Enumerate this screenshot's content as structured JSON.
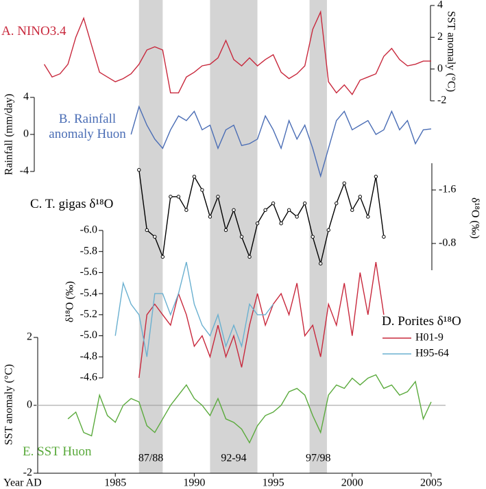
{
  "x_axis": {
    "label": "Year AD",
    "xlim": [
      1980,
      2005
    ],
    "xticks": [
      1985,
      1990,
      1995,
      2000,
      2005
    ],
    "shaded_regions": [
      {
        "start": 1986.5,
        "end": 1988.0,
        "label": "87/88"
      },
      {
        "start": 1991.0,
        "end": 1994.0,
        "label": "92-94"
      },
      {
        "start": 1997.3,
        "end": 1998.4,
        "label": "97/98"
      }
    ]
  },
  "chart_data": [
    {
      "type": "line",
      "title": "A. NINO3.4",
      "ylabel": "SST anomaly (°C)",
      "y_axis_side": "right",
      "ylim": [
        -2,
        4
      ],
      "yticks": [
        -2,
        0,
        2,
        4
      ],
      "x": [
        1980.5,
        1981,
        1981.5,
        1982,
        1982.5,
        1983,
        1983.5,
        1984,
        1984.5,
        1985,
        1985.5,
        1986,
        1986.5,
        1987,
        1987.5,
        1988,
        1988.5,
        1989,
        1989.5,
        1990,
        1990.5,
        1991,
        1991.5,
        1992,
        1992.5,
        1993,
        1993.5,
        1994,
        1994.5,
        1995,
        1995.5,
        1996,
        1996.5,
        1997,
        1997.5,
        1998,
        1998.5,
        1999,
        1999.5,
        2000,
        2000.5,
        2001,
        2001.5,
        2002,
        2002.5,
        2003,
        2003.5,
        2004,
        2004.5,
        2005
      ],
      "series": [
        {
          "color": "#c8283c",
          "values": [
            0.3,
            -0.5,
            -0.3,
            0.3,
            2.0,
            3.2,
            1.5,
            -0.2,
            -0.5,
            -0.8,
            -0.6,
            -0.3,
            0.3,
            1.2,
            1.4,
            1.2,
            -1.5,
            -1.5,
            -0.5,
            -0.2,
            0.2,
            0.3,
            0.7,
            1.8,
            0.6,
            0.2,
            0.7,
            0.2,
            0.6,
            0.9,
            -0.2,
            -0.6,
            -0.3,
            0.2,
            2.5,
            3.6,
            -0.8,
            -1.5,
            -1.0,
            -1.6,
            -0.7,
            -0.5,
            -0.3,
            0.8,
            1.3,
            0.6,
            0.2,
            0.3,
            0.5,
            0.5
          ]
        }
      ]
    },
    {
      "type": "line",
      "title": "B. Rainfall anomaly Huon",
      "ylabel": "Rainfall (mm/day)",
      "y_axis_side": "left",
      "ylim": [
        -4,
        4
      ],
      "yticks": [
        -4,
        0,
        4
      ],
      "x": [
        1986,
        1986.5,
        1987,
        1987.5,
        1988,
        1988.5,
        1989,
        1989.5,
        1990,
        1990.5,
        1991,
        1991.5,
        1992,
        1992.5,
        1993,
        1993.5,
        1994,
        1994.5,
        1995,
        1995.5,
        1996,
        1996.5,
        1997,
        1997.5,
        1998,
        1998.5,
        1999,
        1999.5,
        2000,
        2000.5,
        2001,
        2001.5,
        2002,
        2002.5,
        2003,
        2003.5,
        2004,
        2004.5,
        2005
      ],
      "series": [
        {
          "color": "#4a6db5",
          "values": [
            0,
            3.0,
            1.0,
            -0.5,
            -1.5,
            0.5,
            2.0,
            1.5,
            2.5,
            0.5,
            1.0,
            -1.5,
            0.5,
            1.0,
            -1.2,
            -1.0,
            -0.5,
            2.0,
            0.5,
            -1.5,
            1.5,
            -0.5,
            1.0,
            -1.5,
            -4.5,
            -1.5,
            1.5,
            2.5,
            0.5,
            1.0,
            1.5,
            0.0,
            0.5,
            2.5,
            0.5,
            1.5,
            -1.0,
            0.5,
            0.6
          ]
        }
      ]
    },
    {
      "type": "line",
      "title": "C. T. gigas δ¹⁸O",
      "ylabel": "δ¹⁸O (‰)",
      "y_axis_side": "right",
      "invert_y": true,
      "markers": true,
      "ylim": [
        -2.0,
        -0.4
      ],
      "yticks": [
        -1.6,
        -0.8
      ],
      "x": [
        1986.5,
        1987,
        1987.5,
        1988,
        1988.5,
        1989,
        1989.5,
        1990,
        1990.5,
        1991,
        1991.5,
        1992,
        1992.5,
        1993,
        1993.5,
        1994,
        1994.5,
        1995,
        1995.5,
        1996,
        1996.5,
        1997,
        1997.5,
        1998,
        1998.5,
        1999,
        1999.5,
        2000,
        2000.5,
        2001,
        2001.5,
        2002
      ],
      "series": [
        {
          "color": "#000000",
          "values": [
            -1.9,
            -1.0,
            -0.9,
            -0.6,
            -1.5,
            -1.5,
            -1.3,
            -1.8,
            -1.6,
            -1.2,
            -1.5,
            -1.0,
            -1.3,
            -0.9,
            -0.6,
            -1.1,
            -1.3,
            -1.4,
            -1.1,
            -1.3,
            -1.2,
            -1.4,
            -0.9,
            -0.5,
            -1.0,
            -1.4,
            -1.7,
            -1.3,
            -1.5,
            -1.2,
            -1.8,
            -0.9
          ]
        }
      ]
    },
    {
      "type": "line",
      "title": "D. Porites δ¹⁸O",
      "ylabel": "δ¹⁸O (‰)",
      "y_axis_side": "left",
      "invert_y": true,
      "legend": true,
      "ylim": [
        -6.0,
        -4.6
      ],
      "yticks": [
        {
          "value": -6.0,
          "label": "-6.0"
        },
        -5.8,
        -5.6,
        -5.4,
        -5.2,
        {
          "value": -5.0,
          "label": "-5.0"
        },
        -4.8,
        -4.6
      ],
      "x": [
        1985,
        1985.5,
        1986,
        1986.5,
        1987,
        1987.5,
        1988,
        1988.5,
        1989,
        1989.5,
        1990,
        1990.5,
        1991,
        1991.5,
        1992,
        1992.5,
        1993,
        1993.5,
        1994,
        1994.5,
        1995,
        1995.5,
        1996,
        1996.5,
        1997,
        1997.5,
        1998,
        1998.5,
        1999,
        1999.5,
        2000,
        2000.5,
        2001,
        2001.5,
        2002
      ],
      "series": [
        {
          "name": "H01-9",
          "color": "#c8283c",
          "values": [
            null,
            null,
            null,
            -4.6,
            -5.2,
            -5.3,
            -5.2,
            -5.1,
            -5.4,
            -5.2,
            -4.9,
            -5.0,
            -4.8,
            -5.1,
            -4.8,
            -5.0,
            -4.7,
            -5.1,
            -5.4,
            -5.1,
            -5.3,
            -5.4,
            -5.2,
            -5.5,
            -5.0,
            -5.1,
            -4.8,
            -5.3,
            -5.1,
            -5.5,
            -5.0,
            -5.6,
            -5.2,
            -5.7,
            -5.2
          ]
        },
        {
          "name": "H95-64",
          "color": "#6ab0d0",
          "values": [
            -5.0,
            -5.5,
            -5.3,
            -5.2,
            -4.8,
            -5.4,
            -5.4,
            -5.2,
            -5.4,
            -5.7,
            -5.3,
            -5.1,
            -5.0,
            -5.2,
            -4.9,
            -5.1,
            -4.9,
            -5.3,
            -5.2,
            -5.2,
            -5.3,
            null,
            null,
            null,
            null,
            null,
            null,
            null,
            null,
            null,
            null,
            null,
            null,
            null,
            null
          ]
        }
      ]
    },
    {
      "type": "line",
      "title": "E. SST Huon",
      "ylabel": "SST anomaly (°C)",
      "y_axis_side": "left",
      "zero_line": true,
      "ylim": [
        -2,
        2
      ],
      "yticks": [
        -2,
        0,
        2
      ],
      "x": [
        1982,
        1982.5,
        1983,
        1983.5,
        1984,
        1984.5,
        1985,
        1985.5,
        1986,
        1986.5,
        1987,
        1987.5,
        1988,
        1988.5,
        1989,
        1989.5,
        1990,
        1990.5,
        1991,
        1991.5,
        1992,
        1992.5,
        1993,
        1993.5,
        1994,
        1994.5,
        1995,
        1995.5,
        1996,
        1996.5,
        1997,
        1997.5,
        1998,
        1998.5,
        1999,
        1999.5,
        2000,
        2000.5,
        2001,
        2001.5,
        2002,
        2002.5,
        2003,
        2003.5,
        2004,
        2004.5,
        2005
      ],
      "series": [
        {
          "color": "#5aaa3c",
          "values": [
            -0.4,
            -0.2,
            -0.8,
            -0.9,
            0.3,
            -0.3,
            -0.5,
            0.0,
            0.2,
            0.1,
            -0.6,
            -0.8,
            -0.4,
            0.0,
            0.3,
            0.6,
            0.2,
            0.0,
            -0.3,
            0.2,
            -0.4,
            -0.5,
            -0.7,
            -1.1,
            -0.6,
            -0.3,
            -0.2,
            0.0,
            0.4,
            0.5,
            0.3,
            -0.3,
            -0.8,
            0.3,
            0.6,
            0.5,
            0.8,
            0.6,
            0.8,
            0.9,
            0.5,
            0.6,
            0.3,
            0.4,
            0.7,
            -0.4,
            0.1
          ]
        }
      ]
    }
  ]
}
